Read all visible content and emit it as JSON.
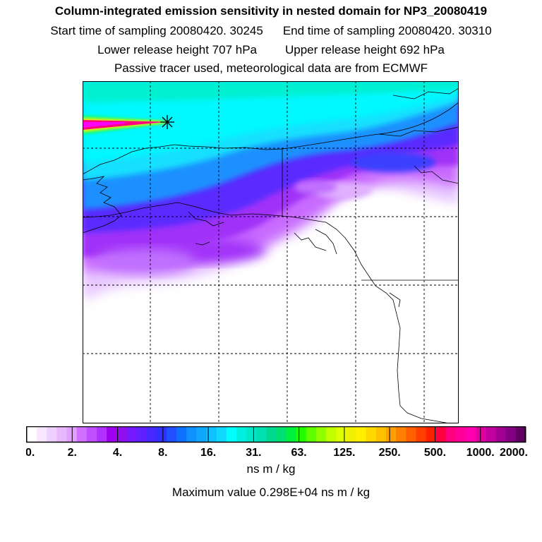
{
  "header": {
    "title": "Column-integrated emission sensitivity in nested domain for NP3_20080419",
    "start_label": "Start time of sampling 20080420. 30245",
    "end_label": "End time of sampling 20080420. 30310",
    "lower_label": "Lower release height  707 hPa",
    "upper_label": "Upper release height  692 hPa",
    "info_label": "Passive tracer used, meteorological data are from ECMWF"
  },
  "map": {
    "release_marker": "asterisk-release-point",
    "plume_colors": [
      "#ff00ff",
      "#ff0080",
      "#ffee00",
      "#00ff80"
    ]
  },
  "colorbar": {
    "tick_labels": [
      "0.",
      "2.",
      "4.",
      "8.",
      "16.",
      "31.",
      "63.",
      "125.",
      "250.",
      "500.",
      "1000.",
      "2000."
    ],
    "colors": [
      "#ffffff",
      "#f8e8ff",
      "#f0d0ff",
      "#e8b8ff",
      "#e0a0ff",
      "#d070ff",
      "#c050ff",
      "#b030ff",
      "#a000f0",
      "#9010f0",
      "#7818ff",
      "#6020ff",
      "#4828ff",
      "#3030ff",
      "#2050ff",
      "#1070ff",
      "#1090ff",
      "#10a8ff",
      "#10c0ff",
      "#10d8ff",
      "#00ffff",
      "#00f0e0",
      "#00e8c8",
      "#00e0b0",
      "#00d890",
      "#00e070",
      "#00f040",
      "#20ff00",
      "#60ff00",
      "#90ff00",
      "#c0ff00",
      "#e0ff00",
      "#f0f000",
      "#fff000",
      "#ffd800",
      "#ffc000",
      "#ffa000",
      "#ff8000",
      "#ff6000",
      "#ff4000",
      "#ff2000",
      "#ff0040",
      "#ff0080",
      "#ff0098",
      "#ff00b0",
      "#e000a0",
      "#c000a0",
      "#a00090",
      "#800080",
      "#600060"
    ],
    "units": "ns m / kg"
  },
  "footer": {
    "max_label": "Maximum value  0.298E+04 ns m / kg"
  }
}
